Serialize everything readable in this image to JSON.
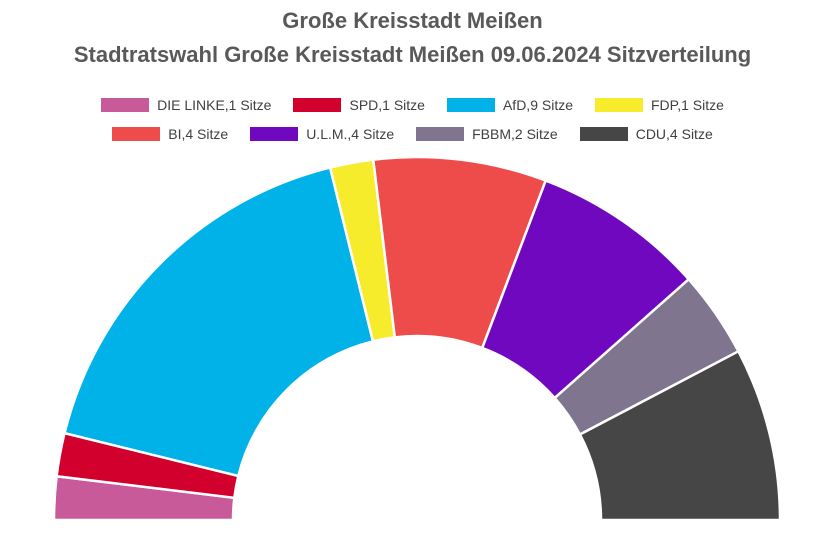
{
  "chart_data": {
    "type": "pie",
    "subtype": "half-donut (parliament seat distribution)",
    "title": "Große Kreisstadt Meißen",
    "subtitle": "Stadtratswahl Große Kreisstadt Meißen 09.06.2024 Sitzverteilung",
    "legend_position": "top",
    "unit": "Sitze",
    "series": [
      {
        "name": "DIE LINKE",
        "seats": 1,
        "legend_label": "DIE LINKE,1 Sitze",
        "color": "#c85a9a"
      },
      {
        "name": "SPD",
        "seats": 1,
        "legend_label": "SPD,1 Sitze",
        "color": "#d2002c"
      },
      {
        "name": "AfD",
        "seats": 9,
        "legend_label": "AfD,9 Sitze",
        "color": "#00b2e8"
      },
      {
        "name": "FDP",
        "seats": 1,
        "legend_label": "FDP,1 Sitze",
        "color": "#f7ec2c"
      },
      {
        "name": "BI",
        "seats": 4,
        "legend_label": "BI,4 Sitze",
        "color": "#ee4b4b"
      },
      {
        "name": "U.L.M.",
        "seats": 4,
        "legend_label": "U.L.M.,4 Sitze",
        "color": "#7008c0"
      },
      {
        "name": "FBBM",
        "seats": 2,
        "legend_label": "FBBM,2 Sitze",
        "color": "#80758e"
      },
      {
        "name": "CDU",
        "seats": 4,
        "legend_label": "CDU,4 Sitze",
        "color": "#464646"
      }
    ],
    "legend_rows": [
      [
        0,
        1,
        2,
        3
      ],
      [
        4,
        5,
        6,
        7
      ]
    ]
  }
}
